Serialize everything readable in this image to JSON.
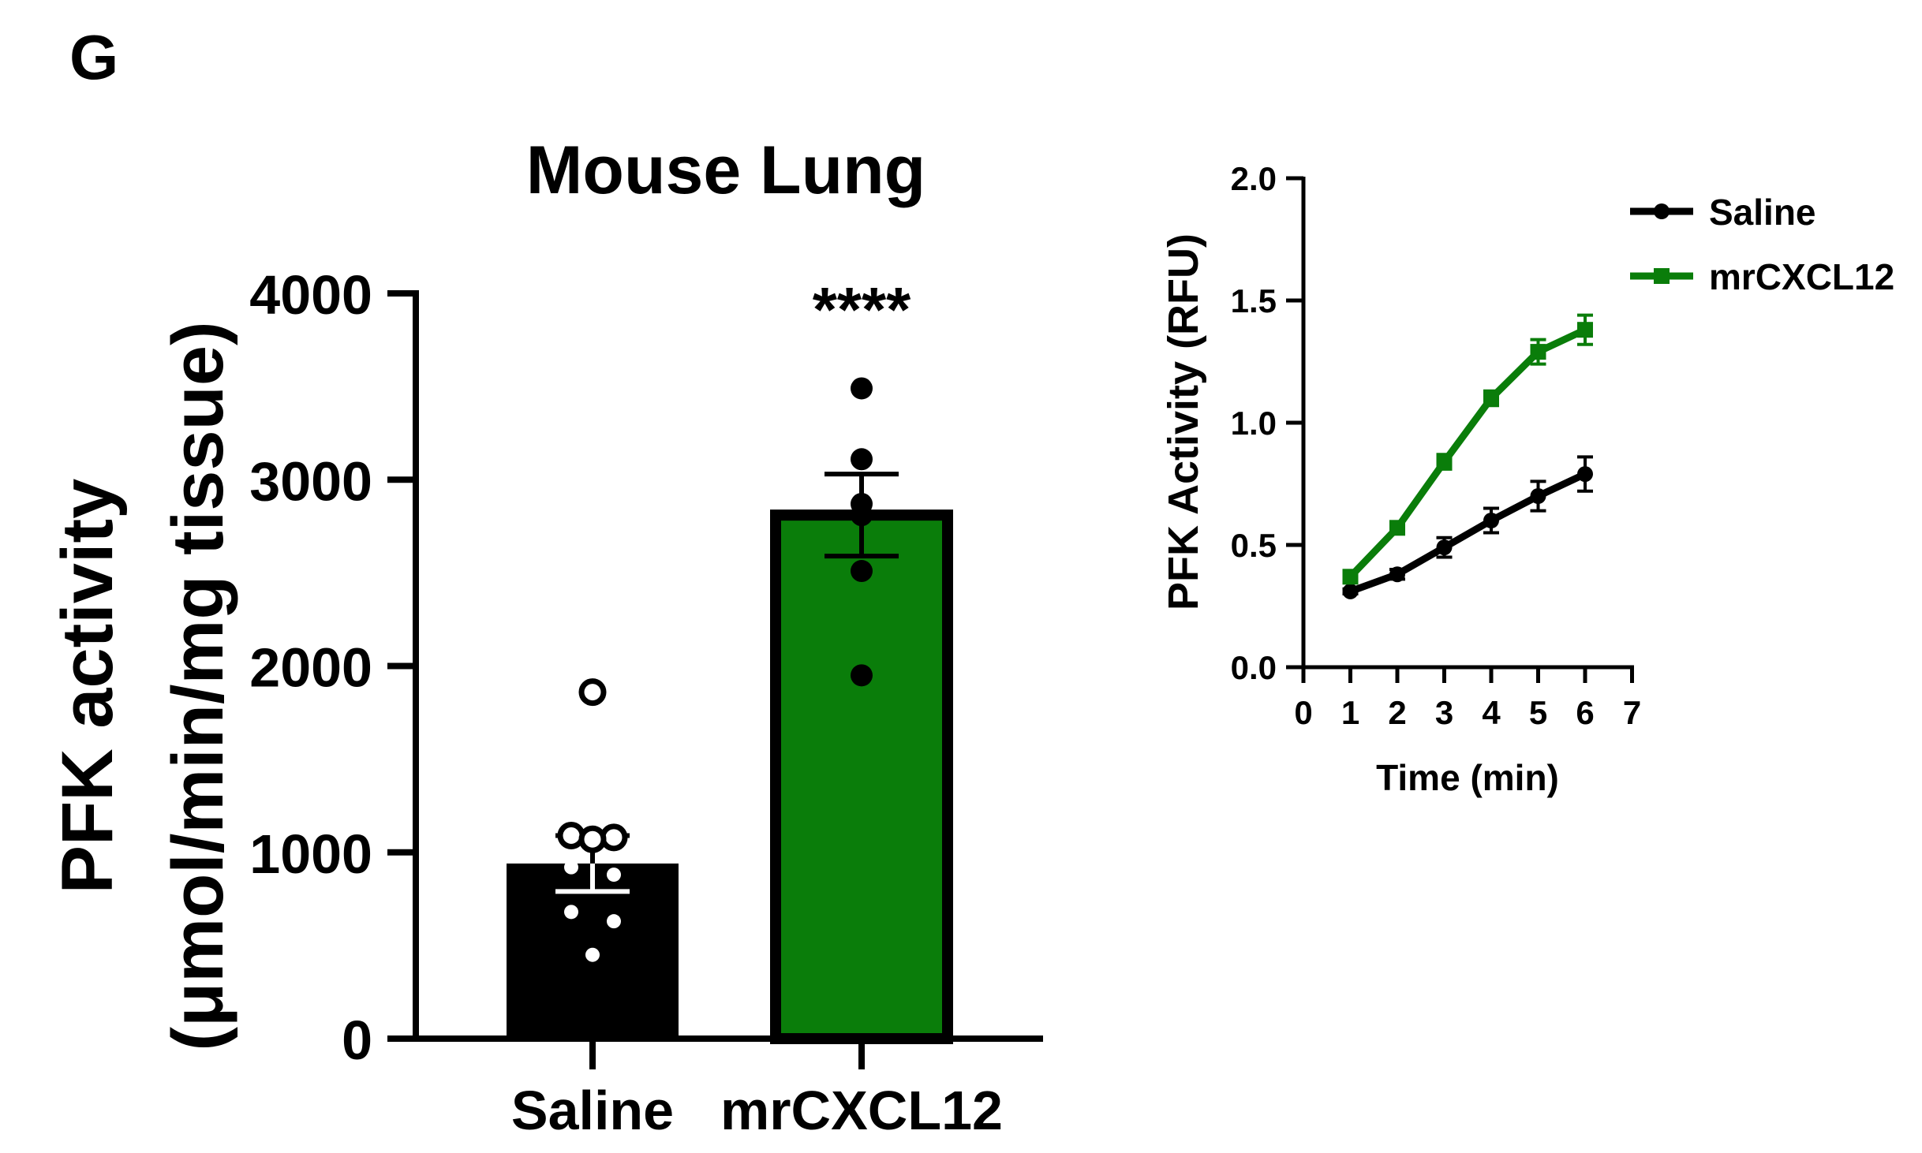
{
  "panel_label": "G",
  "colors": {
    "black": "#000000",
    "green": "#0a7d0a",
    "white": "#ffffff"
  },
  "chart_data": [
    {
      "type": "bar",
      "title": "Mouse Lung",
      "ylabel_line1": "PFK activity",
      "ylabel_line2": "(μmol/min/mg tissue)",
      "xlabel": "",
      "ylim": [
        0,
        4000
      ],
      "yticks": [
        "0",
        "1000",
        "2000",
        "3000",
        "4000"
      ],
      "categories": [
        "Saline",
        "mrCXCL12"
      ],
      "values": [
        940,
        2810
      ],
      "sem": [
        150,
        220
      ],
      "bar_colors": [
        "#000000",
        "#0a7d0a"
      ],
      "points": [
        [
          1860,
          1090,
          1080,
          1070,
          920,
          880,
          680,
          630,
          450
        ],
        [
          3490,
          3110,
          2870,
          2810,
          2810,
          2510,
          1950
        ]
      ],
      "significance": "****"
    },
    {
      "type": "line",
      "title": "",
      "xlabel": "Time (min)",
      "ylabel": "PFK Activity (RFU)",
      "xlim": [
        0,
        7
      ],
      "ylim": [
        0,
        2.0
      ],
      "xticks": [
        "0",
        "1",
        "2",
        "3",
        "4",
        "5",
        "6",
        "7"
      ],
      "yticks": [
        "0.0",
        "0.5",
        "1.0",
        "1.5",
        "2.0"
      ],
      "x": [
        1,
        2,
        3,
        4,
        5,
        6
      ],
      "series": [
        {
          "name": "Saline",
          "color": "#000000",
          "marker": "circle",
          "values": [
            0.31,
            0.38,
            0.49,
            0.6,
            0.7,
            0.79
          ],
          "err": [
            0.01,
            0.02,
            0.04,
            0.05,
            0.06,
            0.07
          ]
        },
        {
          "name": "mrCXCL12",
          "color": "#0a7d0a",
          "marker": "square",
          "values": [
            0.37,
            0.57,
            0.84,
            1.1,
            1.29,
            1.38
          ],
          "err": [
            0.01,
            0.02,
            0.03,
            0.03,
            0.05,
            0.06
          ]
        }
      ],
      "legend_position": "top-right"
    }
  ]
}
